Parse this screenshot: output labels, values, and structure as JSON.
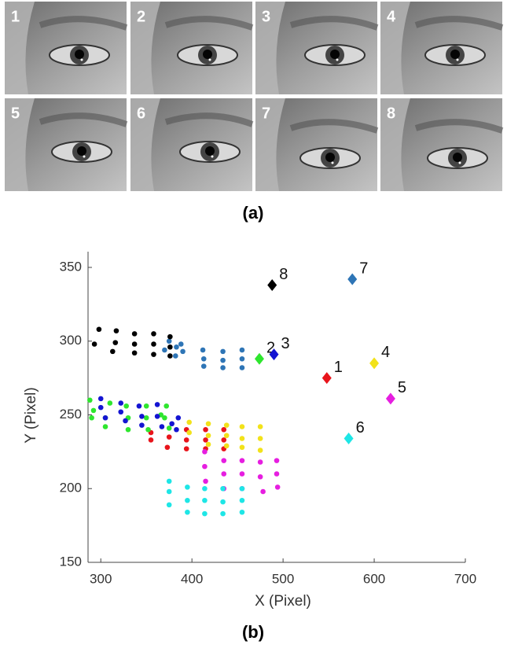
{
  "panel_a": {
    "labels": [
      "1",
      "2",
      "3",
      "4",
      "5",
      "6",
      "7",
      "8"
    ],
    "caption": "(a)"
  },
  "chart_data": {
    "type": "scatter",
    "caption": "(b)",
    "xlabel": "X (Pixel)",
    "ylabel": "Y (Pixel)",
    "xlim": [
      286,
      700
    ],
    "ylim": [
      150,
      350
    ],
    "xticks": [
      300,
      400,
      500,
      600,
      700
    ],
    "yticks": [
      150,
      200,
      250,
      300,
      350
    ],
    "series": [
      {
        "name": "1",
        "color": "#e8141b",
        "marker_x": 548,
        "marker_y": 275,
        "x": [
          355,
          355,
          375,
          373,
          394,
          394,
          394,
          415,
          415,
          415,
          435,
          435,
          435
        ],
        "y": [
          238,
          233,
          235,
          228,
          240,
          233,
          227,
          240,
          233,
          227,
          240,
          233,
          227
        ]
      },
      {
        "name": "2",
        "color": "#2ee62e",
        "marker_x": 474,
        "marker_y": 288,
        "x": [
          288,
          292,
          290,
          310,
          305,
          305,
          328,
          330,
          330,
          350,
          350,
          352,
          372,
          370,
          375,
          366
        ],
        "y": [
          260,
          253,
          248,
          258,
          248,
          242,
          256,
          248,
          240,
          256,
          248,
          240,
          256,
          248,
          241,
          250
        ]
      },
      {
        "name": "3",
        "color": "#1414d2",
        "marker_x": 490,
        "marker_y": 291,
        "x": [
          300,
          300,
          305,
          322,
          322,
          327,
          342,
          345,
          345,
          362,
          362,
          367,
          385,
          383,
          378
        ],
        "y": [
          261,
          255,
          248,
          258,
          252,
          246,
          256,
          249,
          243,
          257,
          249,
          242,
          248,
          240,
          244
        ]
      },
      {
        "name": "4",
        "color": "#f2e21a",
        "marker_x": 600,
        "marker_y": 285,
        "x": [
          397,
          397,
          418,
          418,
          418,
          438,
          438,
          438,
          455,
          455,
          455,
          475,
          475,
          475
        ],
        "y": [
          245,
          238,
          244,
          236,
          230,
          243,
          236,
          229,
          242,
          234,
          228,
          242,
          234,
          226
        ]
      },
      {
        "name": "5",
        "color": "#e61ee0",
        "marker_x": 618,
        "marker_y": 261,
        "x": [
          414,
          415,
          414,
          435,
          435,
          435,
          455,
          455,
          455,
          475,
          475,
          478,
          493,
          493,
          494
        ],
        "y": [
          215,
          205,
          225,
          219,
          210,
          200,
          219,
          210,
          200,
          218,
          208,
          198,
          219,
          210,
          201
        ]
      },
      {
        "name": "6",
        "color": "#1ee6e6",
        "marker_x": 572,
        "marker_y": 234,
        "x": [
          375,
          375,
          375,
          395,
          395,
          395,
          414,
          414,
          414,
          434,
          434,
          434,
          455,
          455,
          455
        ],
        "y": [
          205,
          198,
          189,
          201,
          192,
          184,
          200,
          192,
          183,
          200,
          191,
          183,
          200,
          192,
          184
        ]
      },
      {
        "name": "7",
        "color": "#2e75b6",
        "marker_x": 576,
        "marker_y": 342,
        "x": [
          370,
          375,
          383,
          382,
          388,
          390,
          412,
          413,
          413,
          434,
          434,
          434,
          455,
          455,
          455
        ],
        "y": [
          294,
          300,
          296,
          290,
          298,
          293,
          294,
          288,
          283,
          293,
          287,
          282,
          294,
          288,
          282
        ]
      },
      {
        "name": "8",
        "color": "#000000",
        "marker_x": 488,
        "marker_y": 338,
        "x": [
          293,
          298,
          317,
          316,
          313,
          337,
          337,
          337,
          358,
          358,
          358,
          376,
          376,
          376
        ],
        "y": [
          298,
          308,
          307,
          299,
          293,
          305,
          298,
          292,
          305,
          298,
          291,
          303,
          296,
          290
        ]
      }
    ]
  }
}
